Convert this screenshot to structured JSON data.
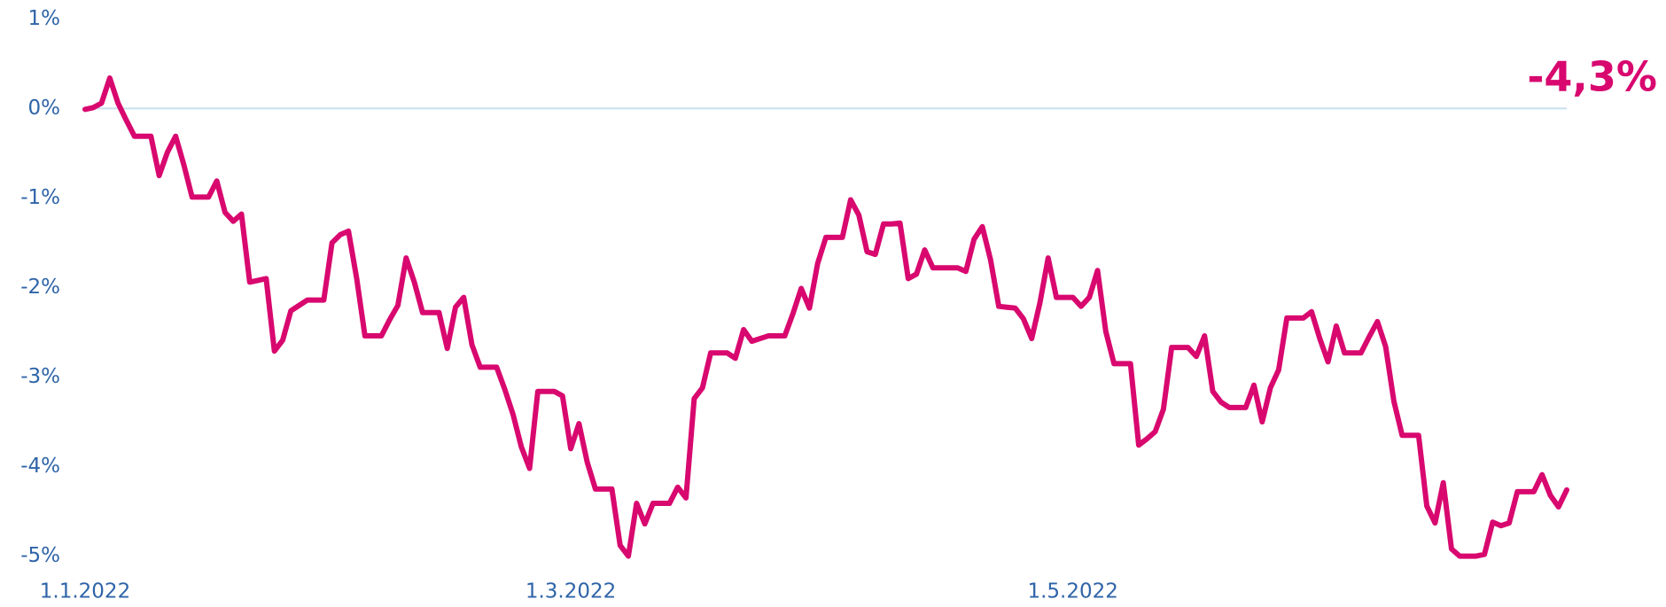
{
  "chart_data": {
    "type": "line",
    "categories": [
      "1.1.2022",
      null,
      null,
      null,
      null,
      null,
      null,
      null,
      null,
      null,
      null,
      null,
      null,
      null,
      null,
      null,
      null,
      null,
      null,
      null,
      null,
      null,
      null,
      null,
      null,
      null,
      null,
      null,
      null,
      null,
      null,
      null,
      null,
      null,
      null,
      null,
      null,
      null,
      null,
      null,
      null,
      null,
      null,
      null,
      null,
      null,
      null,
      null,
      null,
      null,
      null,
      null,
      null,
      null,
      null,
      null,
      null,
      null,
      null,
      "1.3.2022",
      null,
      null,
      null,
      null,
      null,
      null,
      null,
      null,
      null,
      null,
      null,
      null,
      null,
      null,
      null,
      null,
      null,
      null,
      null,
      null,
      null,
      null,
      null,
      null,
      null,
      null,
      null,
      null,
      null,
      null,
      null,
      null,
      null,
      null,
      null,
      null,
      null,
      null,
      null,
      null,
      null,
      null,
      null,
      null,
      null,
      null,
      null,
      null,
      null,
      null,
      null,
      null,
      null,
      null,
      null,
      null,
      null,
      null,
      null,
      null,
      "1.5.2022",
      null,
      null,
      null,
      null,
      null,
      null,
      null,
      null,
      null,
      null,
      null,
      null,
      null,
      null,
      null,
      null,
      null,
      null,
      null,
      null,
      null,
      null,
      null,
      null,
      null,
      null,
      null,
      null,
      null,
      null,
      null,
      null,
      null,
      null,
      null,
      null,
      null,
      null,
      null,
      null,
      null,
      null,
      null,
      null,
      null,
      null,
      null,
      null,
      null,
      null,
      null,
      null,
      null,
      null,
      null,
      null,
      null,
      null,
      null,
      null
    ],
    "series": [
      {
        "color": "#d8086f",
        "values": [
          -0.01,
          0.01,
          0.06,
          0.34,
          0.06,
          -0.13,
          -0.31,
          -0.31,
          -0.31,
          -0.75,
          -0.49,
          -0.31,
          -0.63,
          -0.99,
          -0.99,
          -0.99,
          -0.81,
          -1.16,
          -1.26,
          -1.18,
          -1.94,
          -1.92,
          -1.9,
          -2.71,
          -2.59,
          -2.26,
          -2.2,
          -2.14,
          -2.14,
          -2.14,
          -1.5,
          -1.41,
          -1.37,
          -1.9,
          -2.54,
          -2.54,
          -2.54,
          -2.36,
          -2.2,
          -1.67,
          -1.94,
          -2.28,
          -2.28,
          -2.28,
          -2.68,
          -2.22,
          -2.11,
          -2.64,
          -2.89,
          -2.89,
          -2.89,
          -3.14,
          -3.42,
          -3.78,
          -4.02,
          -3.16,
          -3.16,
          -3.16,
          -3.21,
          -3.8,
          -3.52,
          -3.95,
          -4.25,
          -4.25,
          -4.25,
          -4.88,
          -5.0,
          -4.41,
          -4.64,
          -4.41,
          -4.41,
          -4.41,
          -4.23,
          -4.35,
          -3.24,
          -3.12,
          -2.73,
          -2.73,
          -2.73,
          -2.79,
          -2.47,
          -2.6,
          -2.57,
          -2.54,
          -2.54,
          -2.54,
          -2.29,
          -2.01,
          -2.23,
          -1.73,
          -1.44,
          -1.44,
          -1.44,
          -1.02,
          -1.19,
          -1.6,
          -1.63,
          -1.29,
          -1.29,
          -1.28,
          -1.9,
          -1.85,
          -1.58,
          -1.78,
          -1.78,
          -1.78,
          -1.78,
          -1.82,
          -1.46,
          -1.32,
          -1.69,
          -2.21,
          -2.22,
          -2.23,
          -2.35,
          -2.57,
          -2.17,
          -1.67,
          -2.11,
          -2.11,
          -2.11,
          -2.21,
          -2.11,
          -1.81,
          -2.49,
          -2.85,
          -2.85,
          -2.85,
          -3.76,
          -3.69,
          -3.61,
          -3.36,
          -2.67,
          -2.67,
          -2.67,
          -2.77,
          -2.54,
          -3.16,
          -3.28,
          -3.34,
          -3.34,
          -3.34,
          -3.09,
          -3.5,
          -3.12,
          -2.92,
          -2.34,
          -2.34,
          -2.34,
          -2.27,
          -2.57,
          -2.83,
          -2.43,
          -2.73,
          -2.73,
          -2.73,
          -2.55,
          -2.38,
          -2.66,
          -3.27,
          -3.65,
          -3.65,
          -3.65,
          -4.44,
          -4.63,
          -4.18,
          -4.92,
          -5.0,
          -5.0,
          -5.0,
          -4.98,
          -4.62,
          -4.66,
          -4.63,
          -4.28,
          -4.28,
          -4.28,
          -4.09,
          -4.32,
          -4.45,
          -4.26
        ]
      }
    ],
    "end_label": "-4,3%",
    "ylim": [
      -5,
      1
    ],
    "yticks": [
      {
        "value": 1,
        "label": "1%"
      },
      {
        "value": 0,
        "label": "0%"
      },
      {
        "value": -1,
        "label": "-1%"
      },
      {
        "value": -2,
        "label": "-2%"
      },
      {
        "value": -3,
        "label": "-3%"
      },
      {
        "value": -4,
        "label": "-4%"
      },
      {
        "value": -5,
        "label": "-5%"
      }
    ],
    "zero_line": true,
    "zero_line_color": "#c8e0ef"
  }
}
